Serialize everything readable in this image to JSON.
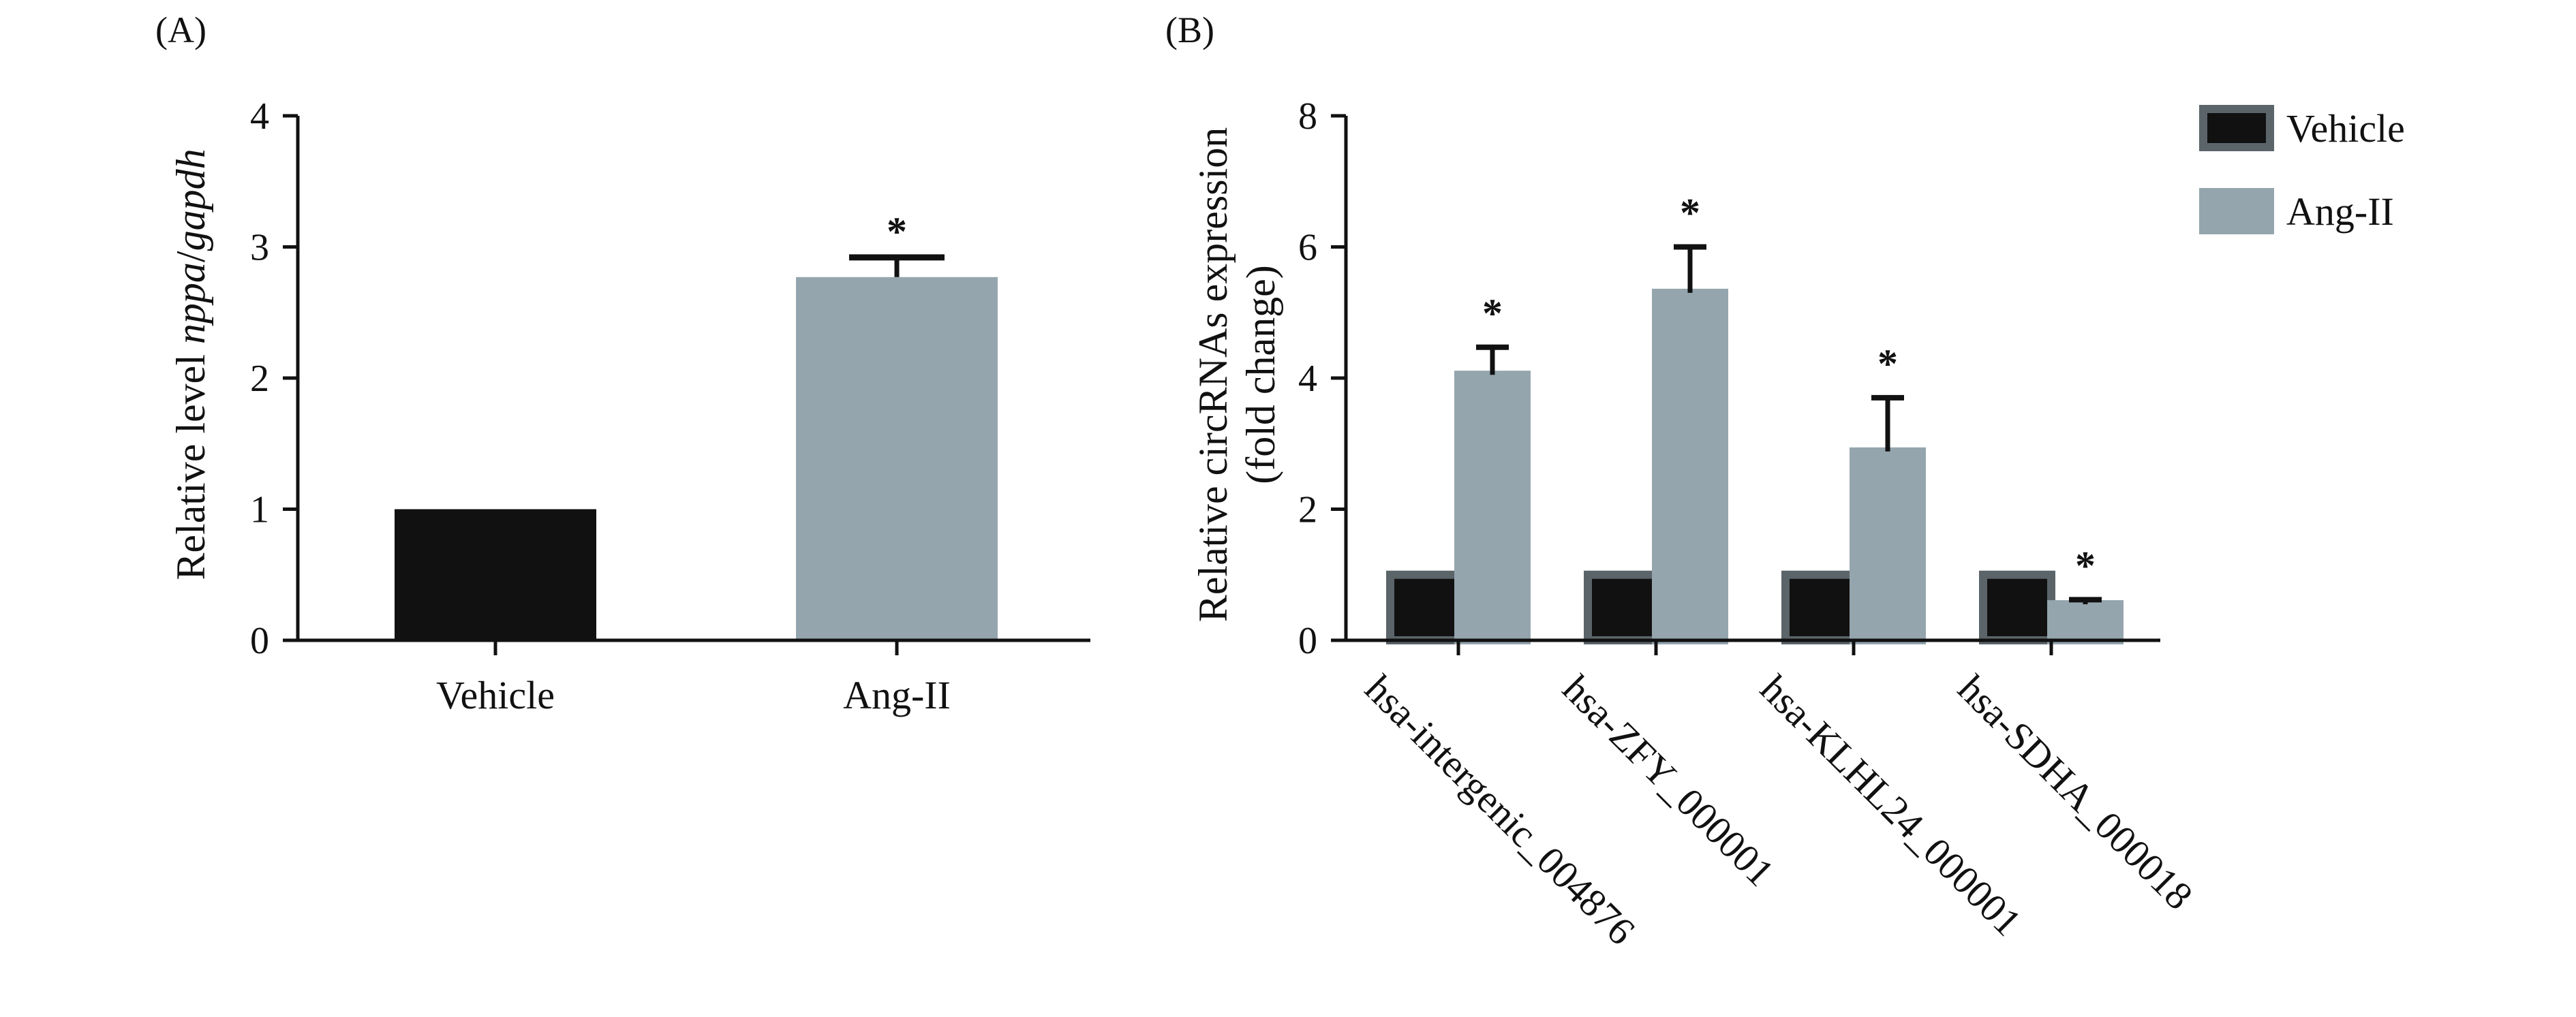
{
  "colors": {
    "vehicle": "#111111",
    "ang": "#94a5ae",
    "axis": "#111111",
    "vehicle_edge": "#5b6469",
    "ang_edge": "#94a5ae"
  },
  "chart_data": [
    {
      "type": "bar",
      "panel_label": "(A)",
      "title": "",
      "xlabel": "",
      "ylabel": "Relative level nppa/gapdh",
      "ylabel_parts": {
        "prefix": "Relative level ",
        "italic": "nppa",
        "sep": "/",
        "italic2": "gapdh"
      },
      "categories": [
        "Vehicle",
        "Ang-II"
      ],
      "values": [
        1.0,
        2.77
      ],
      "errors": [
        0,
        0.15
      ],
      "significance": [
        "",
        "*"
      ],
      "ylim": [
        0,
        4
      ],
      "yticks": [
        "0",
        "1",
        "2",
        "3",
        "4"
      ],
      "legend": "none",
      "grid": false
    },
    {
      "type": "bar",
      "panel_label": "(B)",
      "title": "",
      "xlabel": "",
      "ylabel": "Relative circRNAs expression",
      "ylabel_line2": "(fold change)",
      "categories": [
        "hsa-intergenic_004876",
        "hsa-ZFY_000001",
        "hsa-KLHL24_000001",
        "hsa-SDHA_000018"
      ],
      "series": [
        {
          "name": "Vehicle",
          "values": [
            1.0,
            1.0,
            1.0,
            1.0
          ],
          "errors": [
            0,
            0,
            0,
            0
          ],
          "significance": [
            "",
            "",
            "",
            ""
          ]
        },
        {
          "name": "Ang-II",
          "values": [
            4.05,
            5.3,
            2.88,
            0.55
          ],
          "errors": [
            0.42,
            0.7,
            0.82,
            0.07
          ],
          "significance": [
            "*",
            "*",
            "*",
            "*"
          ]
        }
      ],
      "ylim": [
        0,
        8
      ],
      "yticks": [
        "0",
        "2",
        "4",
        "6",
        "8"
      ],
      "legend": "top-right",
      "grid": false
    }
  ]
}
